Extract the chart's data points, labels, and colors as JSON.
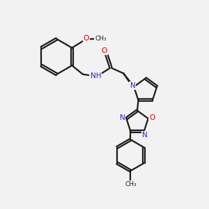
{
  "bg_color": "#f2f2f2",
  "bond_color": "#1a1a1a",
  "N_color": "#2222cc",
  "O_color": "#cc0000",
  "line_width": 1.6,
  "figsize": [
    3.0,
    3.0
  ],
  "dpi": 100,
  "xlim": [
    0,
    10
  ],
  "ylim": [
    0,
    10
  ]
}
